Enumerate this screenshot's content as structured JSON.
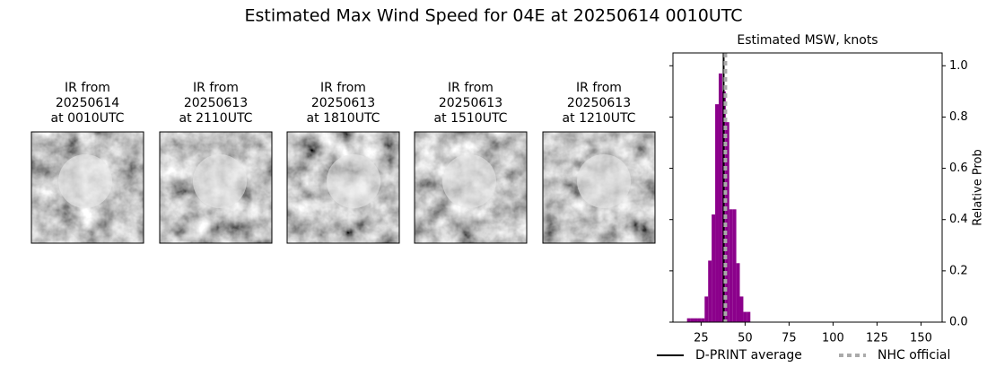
{
  "title": "Estimated Max Wind Speed for 04E at 20250614 0010UTC",
  "panels": [
    {
      "lines": [
        "IR from",
        "20250614",
        "at 0010UTC"
      ]
    },
    {
      "lines": [
        "IR from",
        "20250613",
        "at 2110UTC"
      ]
    },
    {
      "lines": [
        "IR from",
        "20250613",
        "at 1810UTC"
      ]
    },
    {
      "lines": [
        "IR from",
        "20250613",
        "at 1510UTC"
      ]
    },
    {
      "lines": [
        "IR from",
        "20250613",
        "at 1210UTC"
      ]
    }
  ],
  "chart_data": {
    "type": "histogram",
    "title": "Estimated MSW, knots",
    "y_label": "Relative Prob",
    "color": "#8b008b",
    "bins": [
      17,
      19,
      21,
      23,
      25,
      27,
      29,
      31,
      33,
      35,
      37,
      39,
      41,
      43,
      45,
      47,
      49,
      51,
      53
    ],
    "values": [
      0.015,
      0.015,
      0.015,
      0.015,
      0.015,
      0.1,
      0.24,
      0.42,
      0.85,
      0.97,
      0.9,
      0.78,
      0.44,
      0.44,
      0.23,
      0.1,
      0.04,
      0.04
    ],
    "xlim": [
      9,
      162
    ],
    "xticks": [
      25,
      50,
      75,
      100,
      125,
      150
    ],
    "ylim": [
      0,
      1.05
    ],
    "yticks": [
      {
        "value": 0,
        "label": "0.0"
      },
      0.2,
      0.4,
      0.6,
      0.8,
      {
        "value": 1,
        "label": "1.0"
      }
    ],
    "lines": [
      {
        "name": "D-PRINT average",
        "x": 37.8,
        "color": "#000000",
        "style": "solid"
      },
      {
        "name": "NHC official",
        "x": 38.8,
        "color": "#aaaaaa",
        "style": "dashed"
      }
    ]
  }
}
